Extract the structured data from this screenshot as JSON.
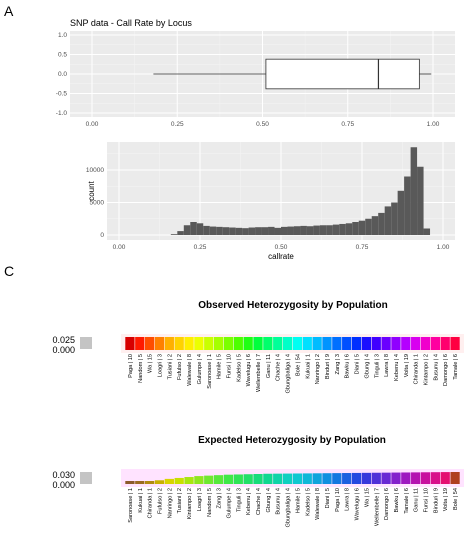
{
  "panels": {
    "a_label": "A",
    "c_label": "C"
  },
  "chart_data": [
    {
      "type": "boxplot",
      "title": "SNP data - Call Rate by Locus",
      "xlabel": "",
      "ylabel": "",
      "xlim": [
        0.0,
        1.0
      ],
      "ylim": [
        -1.0,
        1.0
      ],
      "x_ticks": [
        "0.00",
        "0.25",
        "0.50",
        "0.75",
        "1.00"
      ],
      "y_ticks": [
        "1.0",
        "0.5",
        "0.0",
        "-0.5",
        "-1.0"
      ],
      "box": {
        "whisker_low": 0.18,
        "q1": 0.51,
        "median": 0.84,
        "q3": 0.96,
        "whisker_high": 0.995
      },
      "grid": true
    },
    {
      "type": "bar",
      "subtype": "histogram",
      "xlabel": "callrate",
      "ylabel": "count",
      "xlim": [
        0.0,
        1.0
      ],
      "ylim": [
        0,
        14000
      ],
      "x_ticks": [
        "0.00",
        "0.25",
        "0.50",
        "0.75",
        "1.00"
      ],
      "y_ticks": [
        "10000",
        "5000",
        "0"
      ],
      "bin_start": 0.16,
      "bin_width": 0.02,
      "counts": [
        120,
        600,
        1500,
        2000,
        1800,
        1400,
        1300,
        1250,
        1200,
        1150,
        1100,
        1050,
        1150,
        1200,
        1200,
        1250,
        1100,
        1250,
        1300,
        1350,
        1400,
        1350,
        1450,
        1500,
        1500,
        1600,
        1700,
        1800,
        2000,
        2200,
        2500,
        2900,
        3400,
        4400,
        5000,
        6800,
        9000,
        13500,
        10500,
        1000
      ],
      "grid": true
    },
    {
      "type": "heatmap",
      "title": "Observed Heterozygosity by Population",
      "scale_labels": [
        "0.025",
        "0.000"
      ],
      "categories": [
        "Paga | 10",
        "Nandom | 5",
        "Wa | 15",
        "Loagri | 3",
        "Tusiani | 2",
        "Fufulso | 2",
        "Walewale | 8",
        "Gulumpe | 4",
        "Saronoase | 1",
        "Hamile | 5",
        "Funsi | 10",
        "Kadelso | 5",
        "Wavelugu | 6",
        "Wellembelle | 7",
        "Ganu | 11",
        "Chache | 4",
        "Gbungbaliga | 4",
        "Bole | 54",
        "Kukuai | 1",
        "Nanringo | 2",
        "Binduri | 9",
        "Zang | 3",
        "Bawku | 6",
        "Diani | 5",
        "Gbung | 4",
        "Tinguli | 3",
        "Lawra | 8",
        "Kebenu | 4",
        "Volta | 19",
        "Chiranda | 1",
        "Kintampo | 2",
        "Busunu | 4",
        "Damongo | 6",
        "Tamale | 6"
      ],
      "values": [
        0.024,
        0.0238,
        0.0236,
        0.0234,
        0.0232,
        0.023,
        0.0228,
        0.0226,
        0.0224,
        0.0222,
        0.022,
        0.0218,
        0.0216,
        0.0214,
        0.0212,
        0.021,
        0.0208,
        0.0206,
        0.0204,
        0.0202,
        0.02,
        0.0198,
        0.0196,
        0.0194,
        0.0192,
        0.019,
        0.0188,
        0.0186,
        0.0184,
        0.0182,
        0.018,
        0.0178,
        0.0176,
        0.0174
      ],
      "colors": [
        "#d70000",
        "#ff1a00",
        "#ff4d00",
        "#ff8000",
        "#ffb000",
        "#ffd200",
        "#ffee00",
        "#ecff00",
        "#c9ff00",
        "#a5ff00",
        "#7aff00",
        "#4dff00",
        "#20ff14",
        "#00ff3d",
        "#00ff6b",
        "#00ff99",
        "#00ffc8",
        "#00fff2",
        "#00e0ff",
        "#00bcff",
        "#0094ff",
        "#0070ff",
        "#0050ff",
        "#0030ff",
        "#1a10ff",
        "#4000ff",
        "#6a00ff",
        "#9000ff",
        "#b400ff",
        "#d800f0",
        "#f000cc",
        "#ff00a0",
        "#ff006e",
        "#ff0040"
      ]
    },
    {
      "type": "heatmap",
      "title": "Expected Heterozygosity by Population",
      "scale_labels": [
        "0.030",
        "0.000"
      ],
      "categories": [
        "Saronoase | 1",
        "Kukuai | 1",
        "Chiranda | 1",
        "Fufulso | 2",
        "Nanringo | 2",
        "Tusiani | 2",
        "Kintampo | 2",
        "Loagri | 3",
        "Nandom | 5",
        "Zang | 3",
        "Gulumpe | 4",
        "Tinguli | 3",
        "Kebenu | 4",
        "Chache | 4",
        "Gbung | 4",
        "Busunu | 4",
        "Gbungbaliga | 4",
        "Hamile | 5",
        "Kadelso | 5",
        "Walewale | 8",
        "Diani | 5",
        "Paga | 10",
        "Lawra | 8",
        "Wavelugu | 6",
        "Wa | 15",
        "Wellembelle | 7",
        "Damongo | 6",
        "Bawku | 6",
        "Tamale | 6",
        "Ganu | 11",
        "Funsi | 10",
        "Binduri | 9",
        "Volta | 19",
        "Bole | 54"
      ],
      "values": [
        0.004,
        0.0045,
        0.005,
        0.008,
        0.011,
        0.013,
        0.015,
        0.017,
        0.018,
        0.019,
        0.02,
        0.0205,
        0.021,
        0.0215,
        0.022,
        0.0222,
        0.0224,
        0.0226,
        0.0228,
        0.023,
        0.0232,
        0.0234,
        0.0236,
        0.0238,
        0.024,
        0.0242,
        0.0244,
        0.0246,
        0.0248,
        0.025,
        0.0252,
        0.0254,
        0.0256,
        0.0258
      ],
      "colors": [
        "#8b5a2b",
        "#9a6a20",
        "#b08a10",
        "#c8b000",
        "#d8d400",
        "#c8e000",
        "#a8e610",
        "#8ee620",
        "#70e830",
        "#58e83c",
        "#40e848",
        "#30e456",
        "#22e068",
        "#18dc7a",
        "#10d890",
        "#10d4a8",
        "#10d0c0",
        "#10c8d0",
        "#10b8d8",
        "#10a4dc",
        "#1090e0",
        "#1478e0",
        "#1c60e0",
        "#2448e0",
        "#3838dc",
        "#5030d8",
        "#6a28d4",
        "#8420cc",
        "#9e18c0",
        "#b414b0",
        "#c8109e",
        "#d8108a",
        "#e40e70",
        "#b04020"
      ]
    }
  ]
}
